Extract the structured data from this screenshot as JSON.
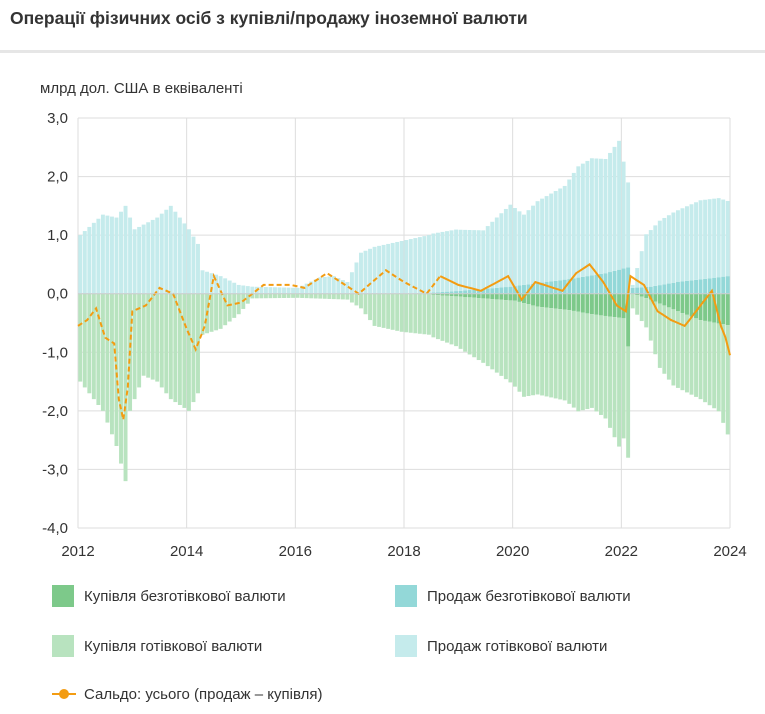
{
  "title": "Операції фізичних осіб з купівлі/продажу іноземної валюти",
  "unit_label": "млрд дол. США в еквіваленті",
  "legend": {
    "buy_cashless": "Купівля безготівкової валюти",
    "sell_cashless": "Продаж безготівкової валюти",
    "buy_cash": "Купівля готівкової валюти",
    "sell_cash": "Продаж готівкової валюти",
    "balance": "Сальдо: усього (продаж – купівля)"
  },
  "colors": {
    "buy_cashless": "#7dc98a",
    "sell_cashless": "#93d8d8",
    "buy_cash": "#b8e3bf",
    "sell_cash": "#c5ebec",
    "balance": "#f39c12",
    "grid": "#dddddd"
  },
  "chart_data": {
    "type": "bar",
    "stacked": true,
    "x_start": "2012-01",
    "x_end": "2024-01",
    "frequency": "monthly",
    "xticks": [
      "2012",
      "2014",
      "2016",
      "2018",
      "2020",
      "2022",
      "2024"
    ],
    "yticks": [
      "3,0",
      "2,0",
      "1,0",
      "0,0",
      "-1,0",
      "-2,0",
      "-3,0",
      "-4,0"
    ],
    "ylim": [
      -4,
      3
    ],
    "grid": true,
    "legend_position": "bottom",
    "series": [
      {
        "name": "Купівля безготівкової валюти",
        "key": "buy_cashless",
        "kind": "bar",
        "anchors": [
          [
            "2012-01",
            0
          ],
          [
            "2018-06",
            0
          ],
          [
            "2018-07",
            -0.02
          ],
          [
            "2019-01",
            -0.05
          ],
          [
            "2019-06",
            -0.08
          ],
          [
            "2020-01",
            -0.12
          ],
          [
            "2020-06",
            -0.22
          ],
          [
            "2021-01",
            -0.28
          ],
          [
            "2021-06",
            -0.35
          ],
          [
            "2022-01",
            -0.42
          ],
          [
            "2022-02",
            -0.9
          ],
          [
            "2022-03",
            0
          ],
          [
            "2022-07",
            -0.1
          ],
          [
            "2023-01",
            -0.3
          ],
          [
            "2023-06",
            -0.45
          ],
          [
            "2024-01",
            -0.55
          ]
        ]
      },
      {
        "name": "Купівля готівкової валюти",
        "key": "buy_cash",
        "kind": "bar",
        "anchors": [
          [
            "2012-01",
            -1.5
          ],
          [
            "2012-06",
            -2.0
          ],
          [
            "2012-09",
            -2.6
          ],
          [
            "2012-11",
            -3.2
          ],
          [
            "2012-12",
            -2.0
          ],
          [
            "2013-03",
            -1.4
          ],
          [
            "2013-06",
            -1.5
          ],
          [
            "2013-09",
            -1.8
          ],
          [
            "2014-01",
            -2.0
          ],
          [
            "2014-03",
            -1.7
          ],
          [
            "2014-04",
            -0.7
          ],
          [
            "2014-08",
            -0.6
          ],
          [
            "2014-12",
            -0.35
          ],
          [
            "2015-03",
            -0.08
          ],
          [
            "2016-01",
            -0.07
          ],
          [
            "2016-12",
            -0.1
          ],
          [
            "2017-03",
            -0.25
          ],
          [
            "2017-06",
            -0.55
          ],
          [
            "2017-12",
            -0.65
          ],
          [
            "2018-06",
            -0.7
          ],
          [
            "2018-12",
            -0.85
          ],
          [
            "2019-06",
            -1.1
          ],
          [
            "2019-12",
            -1.4
          ],
          [
            "2020-03",
            -1.6
          ],
          [
            "2020-06",
            -1.5
          ],
          [
            "2020-12",
            -1.55
          ],
          [
            "2021-03",
            -1.7
          ],
          [
            "2021-06",
            -1.6
          ],
          [
            "2021-09",
            -1.75
          ],
          [
            "2021-12",
            -2.2
          ],
          [
            "2022-02",
            -1.9
          ],
          [
            "2022-03",
            -0.25
          ],
          [
            "2022-06",
            -0.5
          ],
          [
            "2022-09",
            -1.1
          ],
          [
            "2022-12",
            -1.3
          ],
          [
            "2023-06",
            -1.35
          ],
          [
            "2023-10",
            -1.5
          ],
          [
            "2024-01",
            -2.05
          ]
        ]
      },
      {
        "name": "Продаж безготівкової валюти",
        "key": "sell_cashless",
        "kind": "bar",
        "anchors": [
          [
            "2012-01",
            0
          ],
          [
            "2018-06",
            0
          ],
          [
            "2018-07",
            0.02
          ],
          [
            "2019-01",
            0.05
          ],
          [
            "2019-12",
            0.12
          ],
          [
            "2020-06",
            0.18
          ],
          [
            "2021-01",
            0.25
          ],
          [
            "2021-09",
            0.35
          ],
          [
            "2022-02",
            0.45
          ],
          [
            "2022-03",
            0.1
          ],
          [
            "2022-07",
            0.12
          ],
          [
            "2023-01",
            0.2
          ],
          [
            "2023-12",
            0.3
          ],
          [
            "2024-01",
            0.3
          ]
        ]
      },
      {
        "name": "Продаж готівкової валюти",
        "key": "sell_cash",
        "kind": "bar",
        "anchors": [
          [
            "2012-01",
            1.0
          ],
          [
            "2012-06",
            1.35
          ],
          [
            "2012-09",
            1.3
          ],
          [
            "2012-11",
            1.5
          ],
          [
            "2013-01",
            1.1
          ],
          [
            "2013-06",
            1.3
          ],
          [
            "2013-09",
            1.5
          ],
          [
            "2014-01",
            1.1
          ],
          [
            "2014-03",
            0.85
          ],
          [
            "2014-04",
            0.4
          ],
          [
            "2014-08",
            0.3
          ],
          [
            "2014-12",
            0.15
          ],
          [
            "2015-03",
            0.12
          ],
          [
            "2016-01",
            0.1
          ],
          [
            "2016-06",
            0.28
          ],
          [
            "2016-09",
            0.3
          ],
          [
            "2016-12",
            0.2
          ],
          [
            "2017-03",
            0.7
          ],
          [
            "2017-06",
            0.8
          ],
          [
            "2017-12",
            0.9
          ],
          [
            "2018-06",
            1.0
          ],
          [
            "2018-12",
            1.05
          ],
          [
            "2019-06",
            1.0
          ],
          [
            "2019-12",
            1.4
          ],
          [
            "2020-03",
            1.2
          ],
          [
            "2020-06",
            1.4
          ],
          [
            "2020-12",
            1.6
          ],
          [
            "2021-03",
            1.9
          ],
          [
            "2021-06",
            2.0
          ],
          [
            "2021-09",
            1.95
          ],
          [
            "2021-12",
            2.2
          ],
          [
            "2022-02",
            1.45
          ],
          [
            "2022-03",
            0.05
          ],
          [
            "2022-06",
            0.9
          ],
          [
            "2022-09",
            1.1
          ],
          [
            "2022-12",
            1.2
          ],
          [
            "2023-06",
            1.35
          ],
          [
            "2023-10",
            1.35
          ],
          [
            "2024-01",
            1.25
          ]
        ]
      },
      {
        "name": "Сальдо: усього (продаж – купівля)",
        "key": "balance",
        "kind": "line",
        "dashed_until": "2018-09",
        "anchors": [
          [
            "2012-01",
            -0.55
          ],
          [
            "2012-03",
            -0.45
          ],
          [
            "2012-05",
            -0.25
          ],
          [
            "2012-07",
            -0.75
          ],
          [
            "2012-09",
            -0.85
          ],
          [
            "2012-10",
            -1.8
          ],
          [
            "2012-11",
            -2.15
          ],
          [
            "2012-12",
            -1.6
          ],
          [
            "2013-01",
            -0.3
          ],
          [
            "2013-04",
            -0.2
          ],
          [
            "2013-07",
            0.1
          ],
          [
            "2013-10",
            0.0
          ],
          [
            "2014-01",
            -0.6
          ],
          [
            "2014-03",
            -0.95
          ],
          [
            "2014-05",
            -0.55
          ],
          [
            "2014-07",
            0.3
          ],
          [
            "2014-10",
            -0.2
          ],
          [
            "2015-01",
            -0.15
          ],
          [
            "2015-06",
            0.15
          ],
          [
            "2015-12",
            0.15
          ],
          [
            "2016-03",
            0.1
          ],
          [
            "2016-08",
            0.35
          ],
          [
            "2016-11",
            0.2
          ],
          [
            "2017-03",
            0.0
          ],
          [
            "2017-06",
            0.2
          ],
          [
            "2017-09",
            0.4
          ],
          [
            "2018-01",
            0.2
          ],
          [
            "2018-06",
            0.0
          ],
          [
            "2018-09",
            0.3
          ],
          [
            "2019-01",
            0.15
          ],
          [
            "2019-06",
            0.05
          ],
          [
            "2019-12",
            0.3
          ],
          [
            "2020-03",
            -0.1
          ],
          [
            "2020-06",
            0.2
          ],
          [
            "2020-12",
            0.05
          ],
          [
            "2021-03",
            0.35
          ],
          [
            "2021-06",
            0.5
          ],
          [
            "2021-09",
            0.2
          ],
          [
            "2021-12",
            -0.2
          ],
          [
            "2022-02",
            -0.3
          ],
          [
            "2022-03",
            0.3
          ],
          [
            "2022-06",
            0.15
          ],
          [
            "2022-09",
            -0.3
          ],
          [
            "2022-12",
            -0.45
          ],
          [
            "2023-03",
            -0.55
          ],
          [
            "2023-06",
            -0.25
          ],
          [
            "2023-09",
            0.05
          ],
          [
            "2023-11",
            -0.55
          ],
          [
            "2023-12",
            -0.75
          ],
          [
            "2024-01",
            -1.05
          ]
        ]
      }
    ]
  }
}
